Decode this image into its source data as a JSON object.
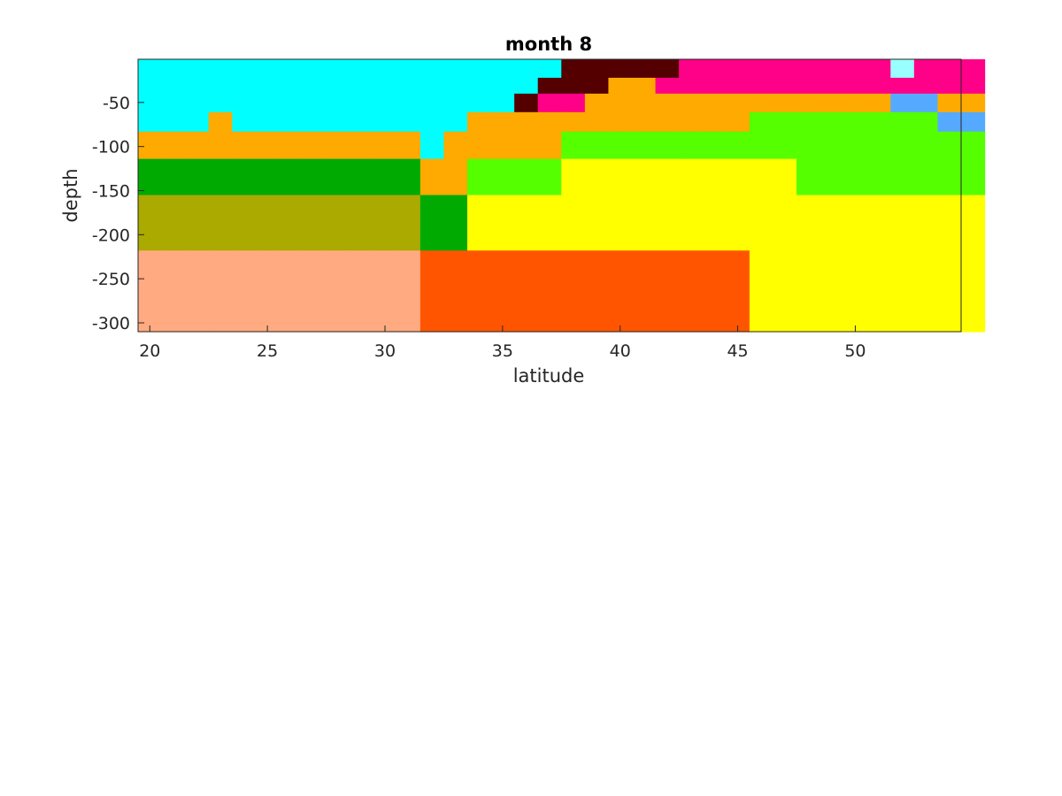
{
  "chart_data": {
    "type": "heatmap",
    "title": "month 8",
    "xlabel": "latitude",
    "ylabel": "depth",
    "xlim": [
      19.5,
      54.5
    ],
    "ylim": [
      -310,
      -1
    ],
    "xticks": [
      20,
      25,
      30,
      35,
      40,
      45,
      50
    ],
    "yticks": [
      -300,
      -250,
      -200,
      -150,
      -100,
      -50
    ],
    "xtick_labels": [
      "20",
      "25",
      "30",
      "35",
      "40",
      "45",
      "50"
    ],
    "ytick_labels": [
      "-300",
      "-250",
      "-200",
      "-150",
      "-100",
      "-50"
    ],
    "latitude_start": 20,
    "latitude_step": 1,
    "depth_layers": [
      [
        -1,
        -22
      ],
      [
        -22,
        -40
      ],
      [
        -40,
        -61
      ],
      [
        -61,
        -83
      ],
      [
        -83,
        -114
      ],
      [
        -114,
        -155
      ],
      [
        -155,
        -218
      ],
      [
        -218,
        -310
      ]
    ],
    "palette": {
      "C": "#00FFFF",
      "c": "#99FFFF",
      "O": "#FFAA00",
      "D": "#550000",
      "M": "#FF0088",
      "B": "#55AAFF",
      "L": "#55FF00",
      "G": "#00AA00",
      "Y": "#FFFF00",
      "K": "#AAAA00",
      "S": "#FFAA80",
      "R": "#FF5500"
    },
    "grid": [
      "CCCCCCCCCCCCCCCCCCDDDDDMMMMMMMMMcMMM",
      "CCCCCCCCCCCCCCCCCDDDOOMMMMMMMMMMMMMM",
      "CCCCCCCCCCCCCCCCDMMOOOOOOOOOOOOOBBOO",
      "CCCOCCCCCCCCCCOOOOOOOOOOOOLLLLLLLLBB",
      "OOOOOOOOOOOOCOOOOOLLLLLLLLLLLLLLLLLL",
      "GGGGGGGGGGGGOOLLLLYYYYYYYYYYLLLLLLLL",
      "KKKKKKKKKKKKGGYYYYYYYYYYYYYYYYYYYYYY",
      "SSSSSSSSSSSSRRRRRRRRRRRRRRYYYYYYYYYY"
    ]
  }
}
